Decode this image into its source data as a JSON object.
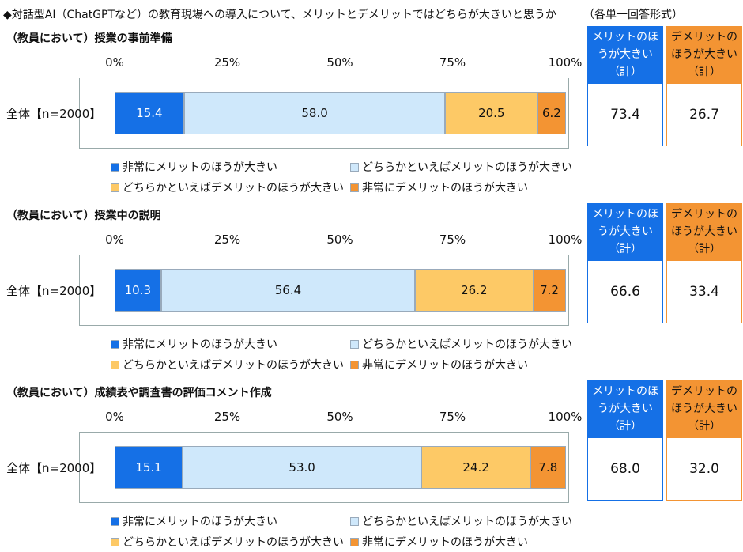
{
  "title": "◆対話型AI（ChatGPTなど）の教育現場への導入について、メリットとデメリットではどちらが大きいと思うか",
  "note": "（各単一回答形式）",
  "chart_data": [
    {
      "type": "bar",
      "orientation": "horizontal",
      "stacked": true,
      "title": "（教員において）授業の事前準備",
      "categories": [
        "全体【n=2000】"
      ],
      "xlim": [
        0,
        100
      ],
      "xticks": [
        {
          "value": 0,
          "label": "0%"
        },
        {
          "value": 25,
          "label": "25%"
        },
        {
          "value": 50,
          "label": "50%"
        },
        {
          "value": 75,
          "label": "75%"
        },
        {
          "value": 100,
          "label": "100%"
        }
      ],
      "series": [
        {
          "name": "非常にメリットのほうが大きい",
          "color": "#1570e6",
          "values": [
            15.4
          ],
          "value_labels": [
            "15.4"
          ]
        },
        {
          "name": "どちらかといえばメリットのほうが大きい",
          "color": "#cfe8fb",
          "values": [
            58.0
          ],
          "value_labels": [
            "58.0"
          ]
        },
        {
          "name": "どちらかといえばデメリットのほうが大きい",
          "color": "#fdc966",
          "values": [
            20.5
          ],
          "value_labels": [
            "20.5"
          ]
        },
        {
          "name": "非常にデメリットのほうが大きい",
          "color": "#f39433",
          "values": [
            6.2
          ],
          "value_labels": [
            "6.2"
          ]
        }
      ],
      "summary": [
        {
          "name": "メリットのほうが大きい（計）",
          "color": "#1570e6",
          "value": 73.4,
          "value_label": "73.4"
        },
        {
          "name": "デメリットのほうが大きい（計）",
          "color": "#f39433",
          "value": 26.7,
          "value_label": "26.7"
        }
      ]
    },
    {
      "type": "bar",
      "orientation": "horizontal",
      "stacked": true,
      "title": "（教員において）授業中の説明",
      "categories": [
        "全体【n=2000】"
      ],
      "xlim": [
        0,
        100
      ],
      "xticks": [
        {
          "value": 0,
          "label": "0%"
        },
        {
          "value": 25,
          "label": "25%"
        },
        {
          "value": 50,
          "label": "50%"
        },
        {
          "value": 75,
          "label": "75%"
        },
        {
          "value": 100,
          "label": "100%"
        }
      ],
      "series": [
        {
          "name": "非常にメリットのほうが大きい",
          "color": "#1570e6",
          "values": [
            10.3
          ],
          "value_labels": [
            "10.3"
          ]
        },
        {
          "name": "どちらかといえばメリットのほうが大きい",
          "color": "#cfe8fb",
          "values": [
            56.4
          ],
          "value_labels": [
            "56.4"
          ]
        },
        {
          "name": "どちらかといえばデメリットのほうが大きい",
          "color": "#fdc966",
          "values": [
            26.2
          ],
          "value_labels": [
            "26.2"
          ]
        },
        {
          "name": "非常にデメリットのほうが大きい",
          "color": "#f39433",
          "values": [
            7.2
          ],
          "value_labels": [
            "7.2"
          ]
        }
      ],
      "summary": [
        {
          "name": "メリットのほうが大きい（計）",
          "color": "#1570e6",
          "value": 66.6,
          "value_label": "66.6"
        },
        {
          "name": "デメリットのほうが大きい（計）",
          "color": "#f39433",
          "value": 33.4,
          "value_label": "33.4"
        }
      ]
    },
    {
      "type": "bar",
      "orientation": "horizontal",
      "stacked": true,
      "title": "（教員において）成績表や調査書の評価コメント作成",
      "categories": [
        "全体【n=2000】"
      ],
      "xlim": [
        0,
        100
      ],
      "xticks": [
        {
          "value": 0,
          "label": "0%"
        },
        {
          "value": 25,
          "label": "25%"
        },
        {
          "value": 50,
          "label": "50%"
        },
        {
          "value": 75,
          "label": "75%"
        },
        {
          "value": 100,
          "label": "100%"
        }
      ],
      "series": [
        {
          "name": "非常にメリットのほうが大きい",
          "color": "#1570e6",
          "values": [
            15.1
          ],
          "value_labels": [
            "15.1"
          ]
        },
        {
          "name": "どちらかといえばメリットのほうが大きい",
          "color": "#cfe8fb",
          "values": [
            53.0
          ],
          "value_labels": [
            "53.0"
          ]
        },
        {
          "name": "どちらかといえばデメリットのほうが大きい",
          "color": "#fdc966",
          "values": [
            24.2
          ],
          "value_labels": [
            "24.2"
          ]
        },
        {
          "name": "非常にデメリットのほうが大きい",
          "color": "#f39433",
          "values": [
            7.8
          ],
          "value_labels": [
            "7.8"
          ]
        }
      ],
      "summary": [
        {
          "name": "メリットのほうが大きい（計）",
          "color": "#1570e6",
          "value": 68.0,
          "value_label": "68.0"
        },
        {
          "name": "デメリットのほうが大きい（計）",
          "color": "#f39433",
          "value": 32.0,
          "value_label": "32.0"
        }
      ]
    }
  ]
}
